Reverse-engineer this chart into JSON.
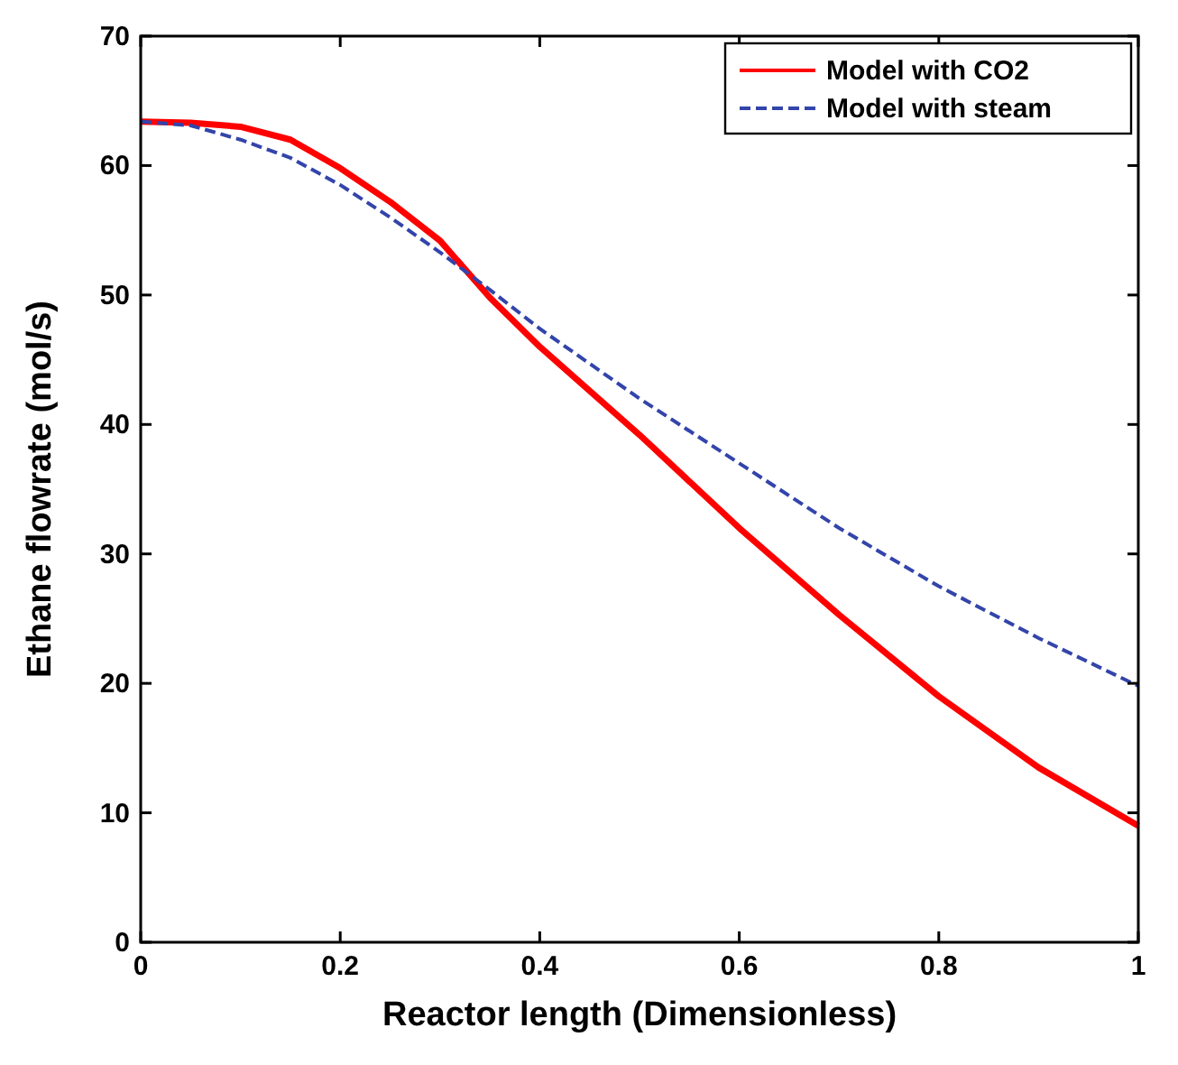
{
  "chart_data": {
    "type": "line",
    "xlabel": "Reactor length (Dimensionless)",
    "ylabel": "Ethane flowrate (mol/s)",
    "xlim": [
      0,
      1
    ],
    "xticks": [
      0,
      0.2,
      0.4,
      0.6,
      0.8,
      1
    ],
    "ylim": [
      0,
      70
    ],
    "yticks": [
      0,
      10,
      20,
      30,
      40,
      50,
      60,
      70
    ],
    "grid": false,
    "legend": "top right",
    "x": [
      0,
      0.05,
      0.1,
      0.15,
      0.2,
      0.25,
      0.3,
      0.35,
      0.4,
      0.5,
      0.6,
      0.7,
      0.8,
      0.9,
      1
    ],
    "series": [
      {
        "name": "Model with CO2",
        "color": "#ff0000",
        "line_style": "solid",
        "values": [
          63.4,
          63.3,
          63.0,
          62.0,
          59.8,
          57.2,
          54.2,
          49.8,
          46.0,
          39.2,
          32.0,
          25.3,
          19.0,
          13.5,
          9.0
        ]
      },
      {
        "name": "Model with steam",
        "color": "#3344aa",
        "line_style": "dashed",
        "values": [
          63.4,
          63.1,
          62.0,
          60.6,
          58.5,
          56.0,
          53.3,
          50.4,
          47.4,
          42.0,
          37.0,
          32.0,
          27.5,
          23.5,
          19.8
        ]
      }
    ]
  }
}
